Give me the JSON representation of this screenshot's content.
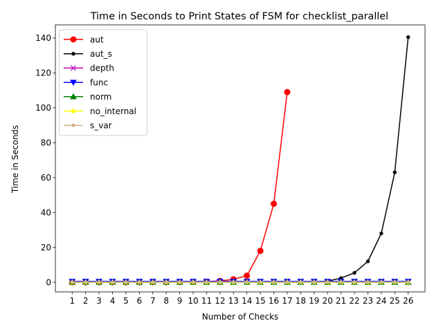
{
  "chart_data": {
    "type": "line",
    "title": "Time in Seconds to Print States of FSM for checklist_parallel",
    "xlabel": "Number of Checks",
    "ylabel": "Time in Seconds",
    "x": [
      1,
      2,
      3,
      4,
      5,
      6,
      7,
      8,
      9,
      10,
      11,
      12,
      13,
      14,
      15,
      16,
      17,
      18,
      19,
      20,
      21,
      22,
      23,
      24,
      25,
      26
    ],
    "ylim": [
      -5.5,
      147.5
    ],
    "yticks": [
      0,
      20,
      40,
      60,
      80,
      100,
      120,
      140
    ],
    "xticks": [
      "1",
      "2",
      "3",
      "4",
      "5",
      "6",
      "7",
      "8",
      "9",
      "10",
      "11",
      "12",
      "13",
      "14",
      "15",
      "16",
      "17",
      "18",
      "19",
      "20",
      "21",
      "22",
      "23",
      "24",
      "25",
      "26"
    ],
    "grid": false,
    "legend_position": "top-left",
    "series": [
      {
        "name": "aut",
        "color": "#ff0000",
        "marker": "circle",
        "x": [
          1,
          2,
          3,
          4,
          5,
          6,
          7,
          8,
          9,
          10,
          11,
          12,
          13,
          14,
          15,
          16,
          17
        ],
        "values": [
          0.01,
          0.01,
          0.01,
          0.01,
          0.02,
          0.03,
          0.05,
          0.08,
          0.12,
          0.2,
          0.4,
          0.8,
          1.7,
          3.8,
          18,
          45,
          109
        ]
      },
      {
        "name": "aut_s",
        "color": "#000000",
        "marker": "point",
        "x": [
          1,
          2,
          3,
          4,
          5,
          6,
          7,
          8,
          9,
          10,
          11,
          12,
          13,
          14,
          15,
          16,
          17,
          18,
          19,
          20,
          21,
          22,
          23,
          24,
          25,
          26
        ],
        "values": [
          0,
          0,
          0,
          0,
          0,
          0,
          0,
          0,
          0,
          0,
          0,
          0,
          0,
          0,
          0,
          0,
          0,
          0,
          0.1,
          0.7,
          2.4,
          5.4,
          12,
          28,
          63,
          140.5
        ]
      },
      {
        "name": "depth",
        "color": "#bf00bf",
        "marker": "x",
        "x": [
          1,
          2,
          3,
          4,
          5,
          6,
          7,
          8,
          9,
          10,
          11,
          12,
          13,
          14,
          15,
          16,
          17,
          18,
          19,
          20,
          21,
          22,
          23,
          24,
          25,
          26
        ],
        "values": [
          0.3,
          0.3,
          0.3,
          0.3,
          0.3,
          0.3,
          0.3,
          0.3,
          0.3,
          0.3,
          0.3,
          0.3,
          0.3,
          0.3,
          0.3,
          0.3,
          0.3,
          0.3,
          0.3,
          0.3,
          0.3,
          0.3,
          0.3,
          0.3,
          0.3,
          0.3
        ]
      },
      {
        "name": "func",
        "color": "#0000ff",
        "marker": "triangle-down",
        "x": [
          1,
          2,
          3,
          4,
          5,
          6,
          7,
          8,
          9,
          10,
          11,
          12,
          13,
          14,
          15,
          16,
          17,
          18,
          19,
          20,
          21,
          22,
          23,
          24,
          25,
          26
        ],
        "values": [
          0.5,
          0.5,
          0.5,
          0.5,
          0.5,
          0.5,
          0.5,
          0.5,
          0.5,
          0.5,
          0.5,
          0.5,
          0.5,
          0.5,
          0.5,
          0.5,
          0.5,
          0.5,
          0.5,
          0.5,
          0.5,
          0.5,
          0.5,
          0.5,
          0.5,
          0.5
        ]
      },
      {
        "name": "norm",
        "color": "#008000",
        "marker": "triangle-up",
        "x": [
          1,
          2,
          3,
          4,
          5,
          6,
          7,
          8,
          9,
          10,
          11,
          12,
          13,
          14,
          15,
          16,
          17,
          18,
          19,
          20,
          21,
          22,
          23,
          24,
          25,
          26
        ],
        "values": [
          0,
          0,
          0,
          0,
          0,
          0,
          0,
          0,
          0,
          0,
          0,
          0,
          0,
          0,
          0,
          0,
          0,
          0,
          0,
          0,
          0,
          0,
          0,
          0,
          0,
          0
        ]
      },
      {
        "name": "no_internal",
        "color": "#ffff00",
        "marker": "star",
        "x": [
          1,
          2,
          3,
          4,
          5,
          6,
          7,
          8,
          9,
          10,
          11,
          12,
          13,
          14,
          15,
          16,
          17,
          18,
          19,
          20,
          21,
          22,
          23,
          24,
          25,
          26
        ],
        "values": [
          0,
          0,
          0,
          0,
          0,
          0,
          0,
          0,
          0,
          0,
          0,
          0,
          0,
          0,
          0,
          0,
          0,
          0,
          0,
          0,
          0,
          0,
          0,
          0,
          0,
          0
        ]
      },
      {
        "name": "s_var",
        "color": "#d2b48c",
        "marker": "point",
        "x": [
          1,
          2,
          3,
          4,
          5,
          6,
          7,
          8,
          9,
          10,
          11,
          12,
          13,
          14,
          15,
          16,
          17,
          18,
          19,
          20,
          21,
          22,
          23,
          24,
          25,
          26
        ],
        "values": [
          0.1,
          0.1,
          0.1,
          0.1,
          0.1,
          0.1,
          0.1,
          0.1,
          0.1,
          0.1,
          0.1,
          0.1,
          0.1,
          0.1,
          0.1,
          0.1,
          0.1,
          0.1,
          0.1,
          0.1,
          0.1,
          0.1,
          0.1,
          0.1,
          0.1,
          0.1
        ]
      }
    ]
  }
}
